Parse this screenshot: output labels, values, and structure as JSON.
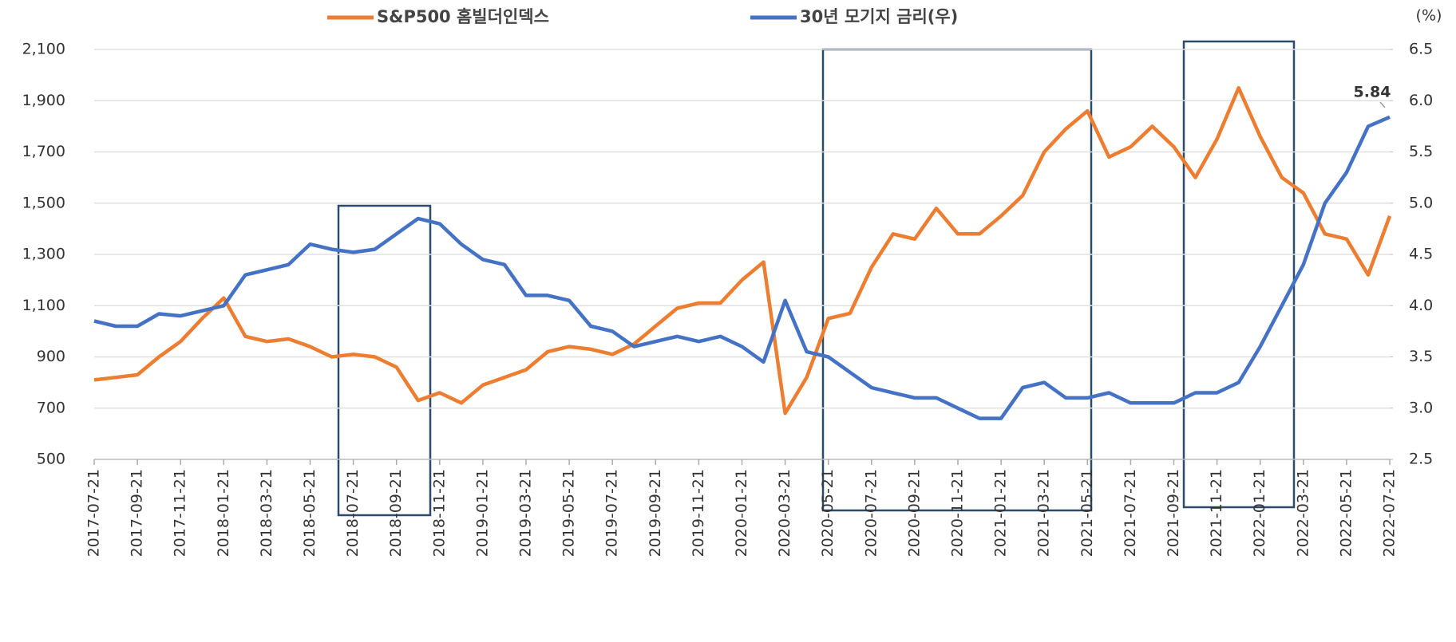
{
  "chart_data": {
    "type": "line",
    "y2label": "(%)",
    "categories": [
      "2017-07-21",
      null,
      "2017-09-21",
      null,
      "2017-11-21",
      null,
      "2018-01-21",
      null,
      "2018-03-21",
      null,
      "2018-05-21",
      null,
      "2018-07-21",
      null,
      "2018-09-21",
      null,
      "2018-11-21",
      null,
      "2019-01-21",
      null,
      "2019-03-21",
      null,
      "2019-05-21",
      null,
      "2019-07-21",
      null,
      "2019-09-21",
      null,
      "2019-11-21",
      null,
      "2020-01-21",
      null,
      "2020-03-21",
      null,
      "2020-05-21",
      null,
      "2020-07-21",
      null,
      "2020-09-21",
      null,
      "2020-11-21",
      null,
      "2021-01-21",
      null,
      "2021-03-21",
      null,
      "2021-05-21",
      null,
      "2021-07-21",
      null,
      "2021-09-21",
      null,
      "2021-11-21",
      null,
      "2022-01-21",
      null,
      "2022-03-21",
      null,
      "2022-05-21",
      null,
      "2022-07-21"
    ],
    "series": [
      {
        "name": "S&P500 홈빌더인덱스",
        "color": "#ed7d31",
        "axis": "y",
        "values": [
          810,
          820,
          830,
          900,
          960,
          1050,
          1130,
          980,
          960,
          970,
          940,
          900,
          910,
          900,
          860,
          730,
          760,
          720,
          790,
          820,
          850,
          920,
          940,
          930,
          910,
          950,
          1020,
          1090,
          1110,
          1110,
          1200,
          1270,
          680,
          820,
          1050,
          1070,
          1250,
          1380,
          1360,
          1480,
          1380,
          1380,
          1450,
          1530,
          1700,
          1790,
          1860,
          1680,
          1720,
          1800,
          1720,
          1600,
          1750,
          1950,
          1760,
          1600,
          1540,
          1380,
          1360,
          1220,
          1450
        ]
      },
      {
        "name": "30년 모기지 금리(우)",
        "color": "#4472c4",
        "axis": "y2",
        "values": [
          3.85,
          3.8,
          3.8,
          3.92,
          3.9,
          3.95,
          4.0,
          4.3,
          4.35,
          4.4,
          4.6,
          4.55,
          4.52,
          4.55,
          4.7,
          4.85,
          4.8,
          4.6,
          4.45,
          4.4,
          4.1,
          4.1,
          4.05,
          3.8,
          3.75,
          3.6,
          3.65,
          3.7,
          3.65,
          3.7,
          3.6,
          3.45,
          4.05,
          3.55,
          3.5,
          3.35,
          3.2,
          3.15,
          3.1,
          3.1,
          3.0,
          2.9,
          2.9,
          3.2,
          3.25,
          3.1,
          3.1,
          3.15,
          3.05,
          3.05,
          3.05,
          3.15,
          3.15,
          3.25,
          3.6,
          4.0,
          4.4,
          5.0,
          5.3,
          5.75,
          5.84
        ]
      }
    ],
    "annotation": "5.84",
    "ylim": [
      500,
      2100
    ],
    "yticks": [
      500,
      700,
      900,
      {
        "value": 1100,
        "label": "1,100"
      },
      {
        "value": 1300,
        "label": "1,300"
      },
      {
        "value": 1500,
        "label": "1,500"
      },
      {
        "value": 1700,
        "label": "1,700"
      },
      {
        "value": 1900,
        "label": "1,900"
      },
      {
        "value": 2100,
        "label": "2,100"
      }
    ],
    "y2lim": [
      2.5,
      6.5
    ],
    "y2ticks": [
      2.5,
      {
        "value": 3,
        "label": "3.0"
      },
      3.5,
      {
        "value": 4,
        "label": "4.0"
      },
      4.5,
      {
        "value": 5,
        "label": "5.0"
      },
      5.5,
      {
        "value": 6,
        "label": "6.0"
      },
      6.5
    ],
    "grid": true
  }
}
